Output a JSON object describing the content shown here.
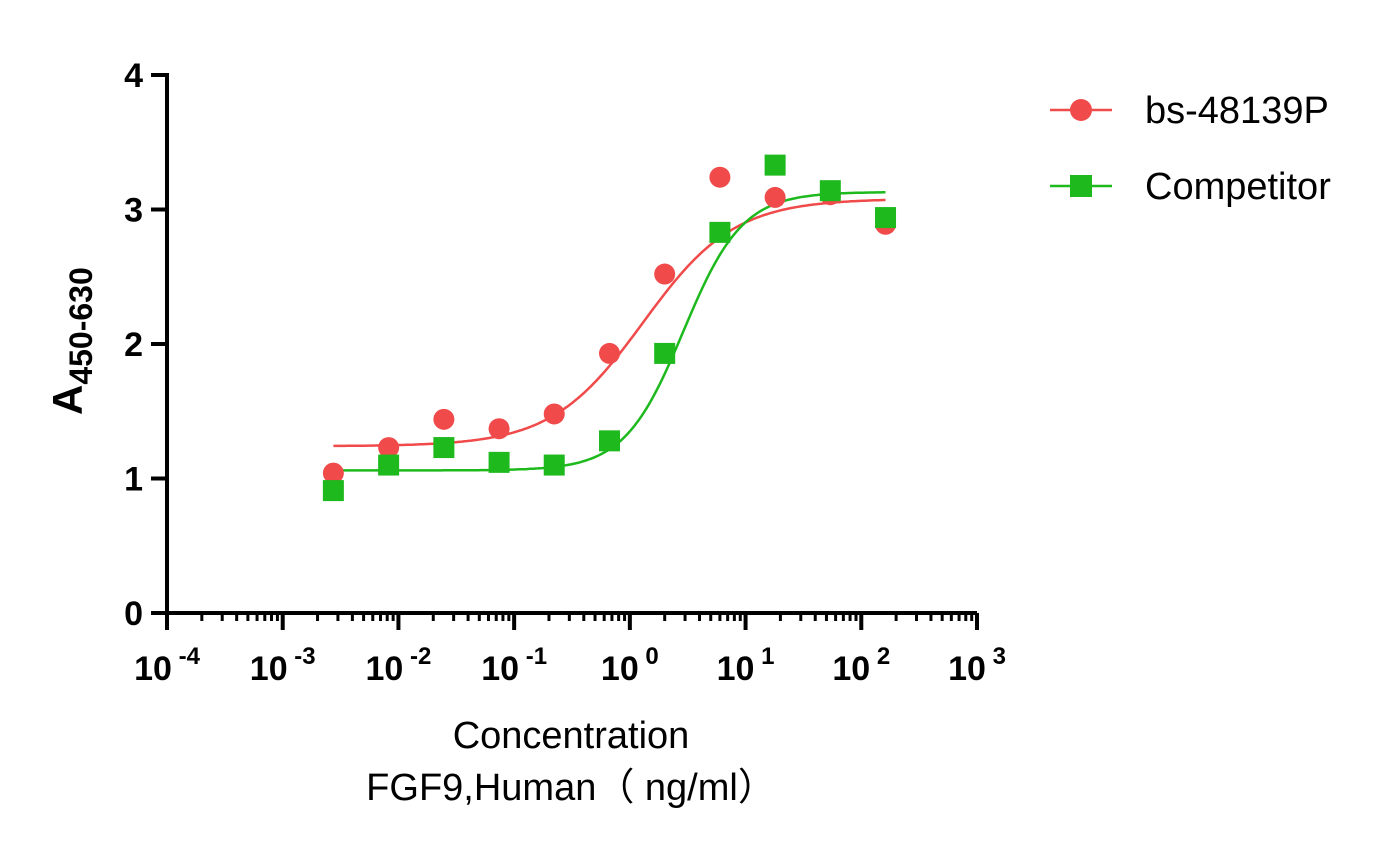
{
  "chart_data": {
    "type": "scatter",
    "title": "",
    "xscale": "log",
    "xlim": [
      0.0001,
      1000
    ],
    "ylim": [
      0,
      4
    ],
    "yticks": [
      0,
      1,
      2,
      3,
      4
    ],
    "xtick_exponents": [
      "-4",
      "-3",
      "-2",
      "-1",
      "0",
      "1",
      "2",
      "3"
    ],
    "xtick_base": "10",
    "xlabel_line1": "Concentration",
    "xlabel_line2": "FGF9,Human（ ng/ml）",
    "ylabel_main": "A",
    "ylabel_sub": "450-630",
    "legend_position": "top-right",
    "series": [
      {
        "name": "bs-48139P",
        "color": "#f04a4a",
        "marker": "circle",
        "x": [
          0.00274,
          0.00823,
          0.0247,
          0.0741,
          0.222,
          0.667,
          2,
          6,
          18,
          54,
          162
        ],
        "y": [
          1.04,
          1.23,
          1.44,
          1.37,
          1.48,
          1.93,
          2.52,
          3.24,
          3.09,
          3.11,
          2.89
        ],
        "fit": {
          "bottom": 1.24,
          "top": 3.08,
          "ec50": 1.3,
          "hill": 1.1
        }
      },
      {
        "name": "Competitor",
        "color": "#1db91d",
        "marker": "square",
        "x": [
          0.00274,
          0.00823,
          0.0247,
          0.0741,
          0.222,
          0.667,
          2,
          6,
          18,
          54,
          162
        ],
        "y": [
          0.91,
          1.1,
          1.23,
          1.12,
          1.1,
          1.28,
          1.93,
          2.83,
          3.33,
          3.14,
          2.94
        ],
        "fit": {
          "bottom": 1.06,
          "top": 3.13,
          "ec50": 2.9,
          "hill": 1.7
        }
      }
    ]
  }
}
